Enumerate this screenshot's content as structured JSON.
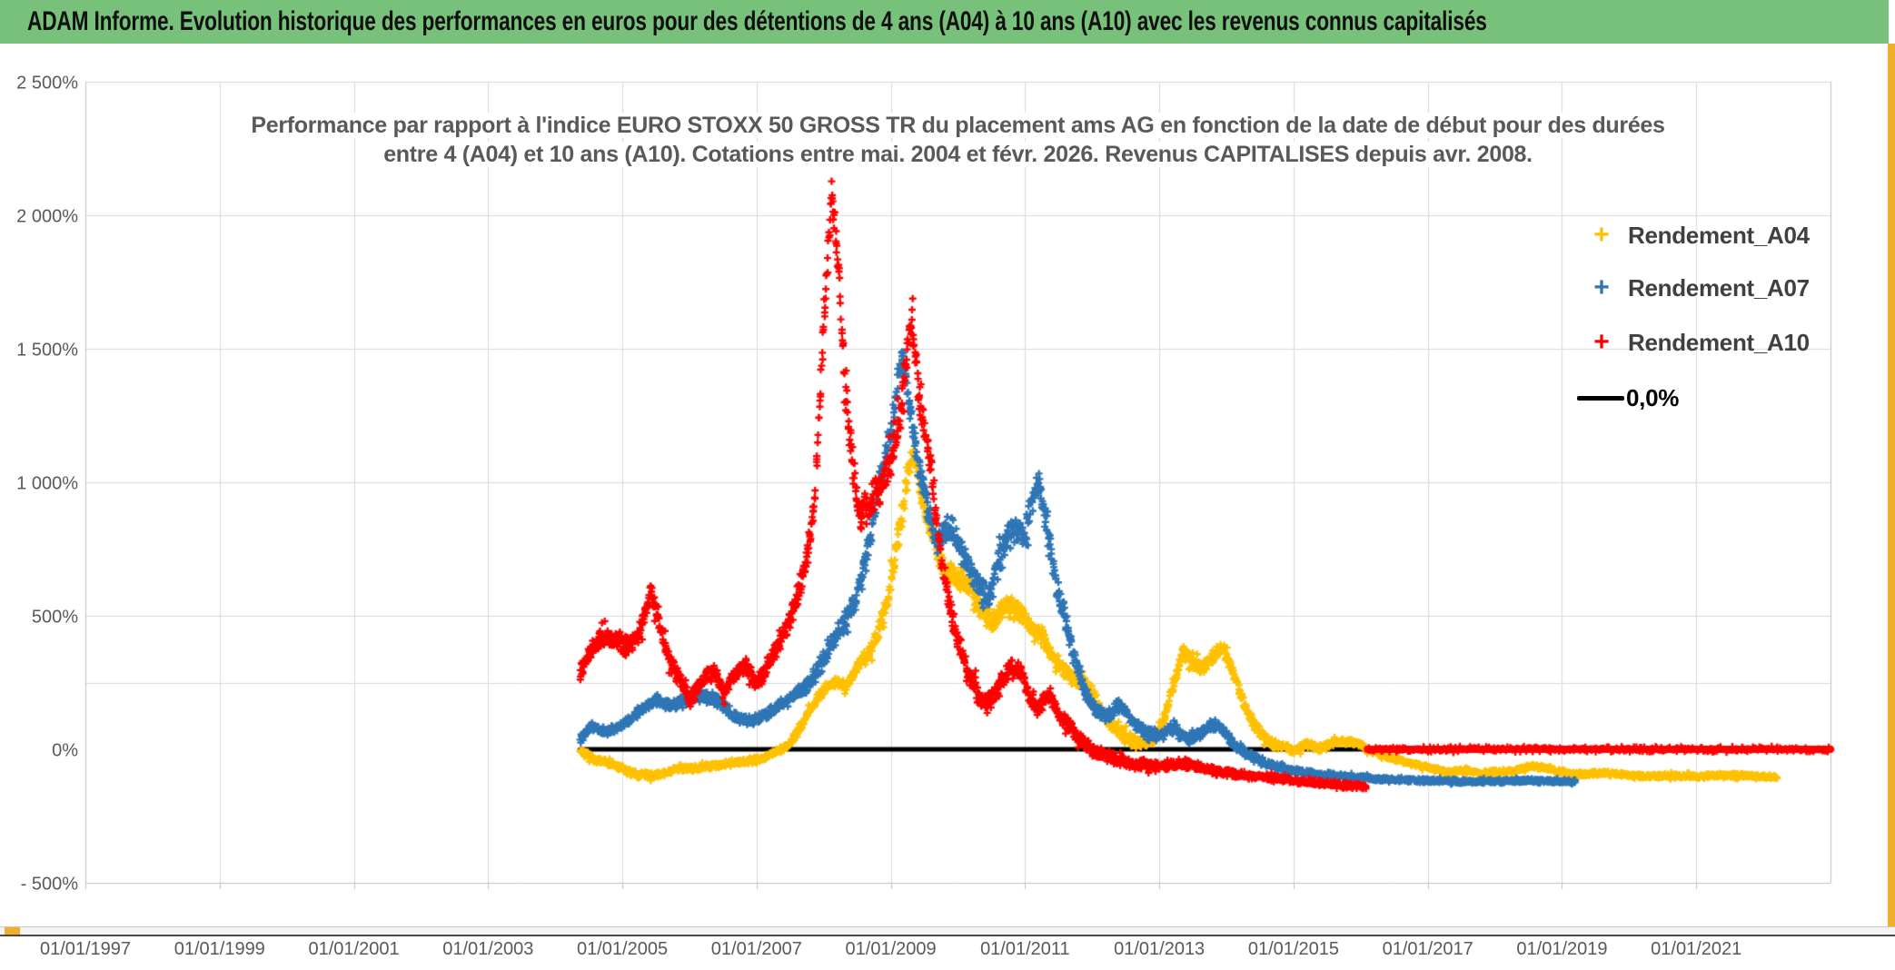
{
  "title_bar": {
    "text": "ADAM Informe. Evolution historique des performances en euros pour des détentions de 4 ans (A04) à 10 ans (A10) avec les revenus connus capitalisés",
    "background": "#77c17a"
  },
  "window": {
    "accent_gold": "#EFAF2D",
    "scrollbar": {
      "thumb_color": "#EFAF2D",
      "track_color": "#f4f4f4"
    }
  },
  "chart": {
    "subtitle_line1": "Performance par rapport à l'indice EURO STOXX 50 GROSS TR  du placement ams AG en fonction de la date de début pour des durées",
    "subtitle_line2": "entre 4 (A04) et 10 ans (A10). Cotations entre mai. 2004 et févr. 2026. Revenus CAPITALISES depuis avr. 2008."
  },
  "legend": {
    "items": [
      {
        "label": "Rendement_A04",
        "color": "#FFC000",
        "marker": "plus"
      },
      {
        "label": "Rendement_A07",
        "color": "#2E75B6",
        "marker": "plus"
      },
      {
        "label": "Rendement_A10",
        "color": "#FF0000",
        "marker": "plus"
      },
      {
        "label": "0,0%",
        "color": "#000000",
        "marker": "line"
      }
    ]
  },
  "chart_data": {
    "type": "scatter",
    "title": "Performance par rapport à l'indice EURO STOXX 50 GROSS TR du placement ams AG en fonction de la date de début pour des durées entre 4 (A04) et 10 ans (A10). Cotations entre mai. 2004 et févr. 2026. Revenus CAPITALISES depuis avr. 2008.",
    "marker": "plus",
    "grid_color": "#D9D9D9",
    "border_color": "#BFBFBF",
    "x_axis": {
      "range": [
        1997,
        2023
      ],
      "tick_years": [
        1997,
        1999,
        2001,
        2003,
        2005,
        2007,
        2009,
        2011,
        2013,
        2015,
        2017,
        2019,
        2021
      ],
      "tick_labels": [
        "01/01/1997",
        "01/01/1999",
        "01/01/2001",
        "01/01/2003",
        "01/01/2005",
        "01/01/2007",
        "01/01/2009",
        "01/01/2011",
        "01/01/2013",
        "01/01/2015",
        "01/01/2017",
        "01/01/2019",
        "01/01/2021"
      ]
    },
    "y_axis": {
      "range": [
        -500,
        2500
      ],
      "unit": "%",
      "tick_values": [
        2500,
        2000,
        1500,
        1000,
        500,
        0,
        -500
      ],
      "tick_labels": [
        "2 500%",
        "2 000%",
        "1 500%",
        "1 000%",
        "500%",
        "0%",
        "- 500%"
      ],
      "gridline_values": [
        2500,
        2000,
        1500,
        1000,
        500,
        250
      ]
    },
    "reference_line": {
      "label": "0,0%",
      "value": 0,
      "color": "#000000",
      "from": 2004.37,
      "to": 2023.0,
      "width": 5
    },
    "series": [
      {
        "name": "Rendement_A04",
        "color": "#FFC000",
        "seed": 7,
        "start": 2004.37,
        "end": 2022.2,
        "anchors": [
          [
            2004.37,
            -5
          ],
          [
            2004.6,
            -40
          ],
          [
            2004.9,
            -60
          ],
          [
            2005.2,
            -95
          ],
          [
            2005.5,
            -100
          ],
          [
            2005.8,
            -75
          ],
          [
            2006.1,
            -70
          ],
          [
            2006.4,
            -60
          ],
          [
            2006.7,
            -50
          ],
          [
            2007.0,
            -40
          ],
          [
            2007.25,
            -15
          ],
          [
            2007.45,
            10
          ],
          [
            2007.6,
            60
          ],
          [
            2007.75,
            130
          ],
          [
            2007.9,
            190
          ],
          [
            2008.05,
            235
          ],
          [
            2008.2,
            250
          ],
          [
            2008.35,
            240
          ],
          [
            2008.5,
            310
          ],
          [
            2008.65,
            350
          ],
          [
            2008.8,
            420
          ],
          [
            2008.95,
            560
          ],
          [
            2009.1,
            780
          ],
          [
            2009.25,
            1020
          ],
          [
            2009.33,
            1120
          ],
          [
            2009.45,
            950
          ],
          [
            2009.6,
            820
          ],
          [
            2009.75,
            700
          ],
          [
            2009.9,
            650
          ],
          [
            2010.05,
            645
          ],
          [
            2010.2,
            600
          ],
          [
            2010.35,
            520
          ],
          [
            2010.5,
            470
          ],
          [
            2010.65,
            525
          ],
          [
            2010.8,
            545
          ],
          [
            2010.95,
            505
          ],
          [
            2011.1,
            455
          ],
          [
            2011.25,
            425
          ],
          [
            2011.4,
            350
          ],
          [
            2011.55,
            305
          ],
          [
            2011.7,
            270
          ],
          [
            2011.85,
            255
          ],
          [
            2012.0,
            215
          ],
          [
            2012.15,
            130
          ],
          [
            2012.3,
            85
          ],
          [
            2012.5,
            45
          ],
          [
            2012.7,
            25
          ],
          [
            2012.9,
            40
          ],
          [
            2013.05,
            95
          ],
          [
            2013.2,
            235
          ],
          [
            2013.35,
            365
          ],
          [
            2013.5,
            330
          ],
          [
            2013.65,
            300
          ],
          [
            2013.8,
            350
          ],
          [
            2013.95,
            380
          ],
          [
            2014.1,
            290
          ],
          [
            2014.25,
            180
          ],
          [
            2014.4,
            95
          ],
          [
            2014.6,
            35
          ],
          [
            2014.8,
            10
          ],
          [
            2015.0,
            -5
          ],
          [
            2015.2,
            20
          ],
          [
            2015.4,
            5
          ],
          [
            2015.6,
            25
          ],
          [
            2015.8,
            30
          ],
          [
            2015.95,
            25
          ],
          [
            2016.1,
            0
          ],
          [
            2016.3,
            -20
          ],
          [
            2016.55,
            -40
          ],
          [
            2016.8,
            -55
          ],
          [
            2017.05,
            -70
          ],
          [
            2017.3,
            -85
          ],
          [
            2017.55,
            -80
          ],
          [
            2017.8,
            -90
          ],
          [
            2018.05,
            -85
          ],
          [
            2018.3,
            -80
          ],
          [
            2018.55,
            -62
          ],
          [
            2018.8,
            -72
          ],
          [
            2019.05,
            -88
          ],
          [
            2019.3,
            -95
          ],
          [
            2019.6,
            -90
          ],
          [
            2019.9,
            -95
          ],
          [
            2020.2,
            -100
          ],
          [
            2020.6,
            -100
          ],
          [
            2021.0,
            -102
          ],
          [
            2021.4,
            -96
          ],
          [
            2021.8,
            -100
          ],
          [
            2022.2,
            -105
          ]
        ],
        "amp": [
          [
            2004.4,
            14
          ],
          [
            2007,
            12
          ],
          [
            2008.5,
            25
          ],
          [
            2009.3,
            60
          ],
          [
            2010,
            45
          ],
          [
            2011,
            40
          ],
          [
            2012,
            25
          ],
          [
            2013.5,
            35
          ],
          [
            2014.5,
            20
          ],
          [
            2015.5,
            15
          ],
          [
            2016.5,
            10
          ],
          [
            2018,
            10
          ],
          [
            2022.2,
            9
          ]
        ]
      },
      {
        "name": "Rendement_A07",
        "color": "#2E75B6",
        "seed": 13,
        "start": 2004.37,
        "end": 2019.2,
        "anchors": [
          [
            2004.37,
            45
          ],
          [
            2004.55,
            85
          ],
          [
            2004.75,
            65
          ],
          [
            2005.0,
            90
          ],
          [
            2005.3,
            150
          ],
          [
            2005.5,
            185
          ],
          [
            2005.75,
            165
          ],
          [
            2006.0,
            195
          ],
          [
            2006.2,
            200
          ],
          [
            2006.45,
            175
          ],
          [
            2006.7,
            120
          ],
          [
            2006.95,
            105
          ],
          [
            2007.2,
            140
          ],
          [
            2007.5,
            190
          ],
          [
            2007.8,
            250
          ],
          [
            2008.0,
            340
          ],
          [
            2008.2,
            430
          ],
          [
            2008.4,
            520
          ],
          [
            2008.55,
            620
          ],
          [
            2008.7,
            800
          ],
          [
            2008.85,
            1020
          ],
          [
            2009.0,
            1180
          ],
          [
            2009.1,
            1360
          ],
          [
            2009.17,
            1470
          ],
          [
            2009.28,
            1290
          ],
          [
            2009.4,
            1090
          ],
          [
            2009.55,
            890
          ],
          [
            2009.7,
            770
          ],
          [
            2009.85,
            830
          ],
          [
            2010.0,
            780
          ],
          [
            2010.15,
            690
          ],
          [
            2010.3,
            620
          ],
          [
            2010.45,
            560
          ],
          [
            2010.6,
            700
          ],
          [
            2010.75,
            790
          ],
          [
            2010.9,
            820
          ],
          [
            2011.0,
            790
          ],
          [
            2011.1,
            930
          ],
          [
            2011.2,
            1000
          ],
          [
            2011.3,
            860
          ],
          [
            2011.45,
            640
          ],
          [
            2011.6,
            490
          ],
          [
            2011.75,
            340
          ],
          [
            2011.9,
            215
          ],
          [
            2012.05,
            140
          ],
          [
            2012.2,
            120
          ],
          [
            2012.4,
            165
          ],
          [
            2012.6,
            110
          ],
          [
            2012.8,
            60
          ],
          [
            2013.0,
            50
          ],
          [
            2013.2,
            85
          ],
          [
            2013.4,
            40
          ],
          [
            2013.6,
            55
          ],
          [
            2013.8,
            95
          ],
          [
            2013.95,
            70
          ],
          [
            2014.1,
            20
          ],
          [
            2014.3,
            -20
          ],
          [
            2014.6,
            -55
          ],
          [
            2014.9,
            -78
          ],
          [
            2015.2,
            -88
          ],
          [
            2015.5,
            -96
          ],
          [
            2015.8,
            -102
          ],
          [
            2016.2,
            -110
          ],
          [
            2016.6,
            -116
          ],
          [
            2017.0,
            -118
          ],
          [
            2017.5,
            -121
          ],
          [
            2018.0,
            -120
          ],
          [
            2018.5,
            -118
          ],
          [
            2019.0,
            -121
          ],
          [
            2019.2,
            -120
          ]
        ],
        "amp": [
          [
            2004.4,
            16
          ],
          [
            2006,
            22
          ],
          [
            2007.5,
            22
          ],
          [
            2008.6,
            60
          ],
          [
            2009.2,
            70
          ],
          [
            2010,
            60
          ],
          [
            2011.2,
            65
          ],
          [
            2012,
            30
          ],
          [
            2013,
            28
          ],
          [
            2014,
            22
          ],
          [
            2015,
            12
          ],
          [
            2016,
            9
          ],
          [
            2019.2,
            8
          ]
        ]
      },
      {
        "name": "Rendement_A10",
        "color": "#FF0000",
        "seed": 29,
        "start": 2004.37,
        "end": 2016.07,
        "anchors": [
          [
            2004.37,
            280
          ],
          [
            2004.5,
            360
          ],
          [
            2004.7,
            420
          ],
          [
            2004.9,
            415
          ],
          [
            2005.05,
            380
          ],
          [
            2005.2,
            420
          ],
          [
            2005.32,
            480
          ],
          [
            2005.42,
            600
          ],
          [
            2005.52,
            500
          ],
          [
            2005.65,
            370
          ],
          [
            2005.8,
            285
          ],
          [
            2006.0,
            185
          ],
          [
            2006.2,
            255
          ],
          [
            2006.35,
            300
          ],
          [
            2006.5,
            215
          ],
          [
            2006.65,
            260
          ],
          [
            2006.8,
            320
          ],
          [
            2007.0,
            255
          ],
          [
            2007.15,
            300
          ],
          [
            2007.3,
            380
          ],
          [
            2007.45,
            470
          ],
          [
            2007.6,
            560
          ],
          [
            2007.75,
            700
          ],
          [
            2007.87,
            950
          ],
          [
            2007.95,
            1350
          ],
          [
            2008.05,
            1800
          ],
          [
            2008.12,
            2060
          ],
          [
            2008.2,
            1880
          ],
          [
            2008.3,
            1450
          ],
          [
            2008.42,
            1080
          ],
          [
            2008.55,
            880
          ],
          [
            2008.7,
            920
          ],
          [
            2008.85,
            980
          ],
          [
            2009.0,
            1080
          ],
          [
            2009.15,
            1280
          ],
          [
            2009.25,
            1500
          ],
          [
            2009.32,
            1620
          ],
          [
            2009.42,
            1320
          ],
          [
            2009.55,
            1120
          ],
          [
            2009.7,
            820
          ],
          [
            2009.85,
            560
          ],
          [
            2010.0,
            400
          ],
          [
            2010.15,
            285
          ],
          [
            2010.3,
            205
          ],
          [
            2010.45,
            175
          ],
          [
            2010.6,
            225
          ],
          [
            2010.75,
            295
          ],
          [
            2010.9,
            310
          ],
          [
            2011.05,
            205
          ],
          [
            2011.2,
            150
          ],
          [
            2011.35,
            210
          ],
          [
            2011.5,
            130
          ],
          [
            2011.65,
            85
          ],
          [
            2011.8,
            50
          ],
          [
            2012.0,
            0
          ],
          [
            2012.3,
            -35
          ],
          [
            2012.6,
            -55
          ],
          [
            2013.0,
            -60
          ],
          [
            2013.4,
            -55
          ],
          [
            2013.8,
            -80
          ],
          [
            2014.2,
            -95
          ],
          [
            2014.6,
            -105
          ],
          [
            2015.0,
            -118
          ],
          [
            2015.5,
            -128
          ],
          [
            2016.07,
            -140
          ]
        ],
        "amp": [
          [
            2004.4,
            40
          ],
          [
            2005.4,
            45
          ],
          [
            2006,
            35
          ],
          [
            2007,
            35
          ],
          [
            2007.9,
            60
          ],
          [
            2008.12,
            90
          ],
          [
            2008.5,
            80
          ],
          [
            2009.3,
            80
          ],
          [
            2009.8,
            60
          ],
          [
            2010.5,
            45
          ],
          [
            2011.5,
            35
          ],
          [
            2012.5,
            22
          ],
          [
            2013.5,
            18
          ],
          [
            2014.5,
            15
          ],
          [
            2016.07,
            12
          ]
        ],
        "zero_segment": {
          "from": 2016.1,
          "to": 2023.0,
          "value": 0,
          "width": 8
        }
      }
    ]
  }
}
